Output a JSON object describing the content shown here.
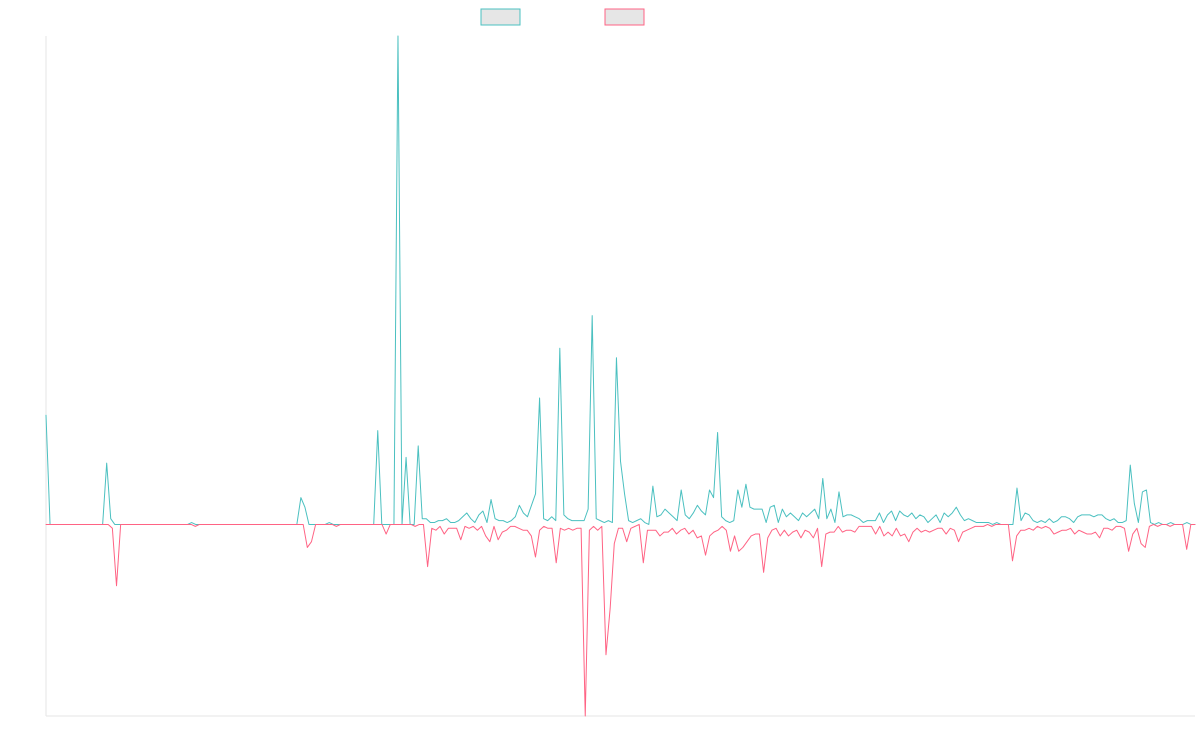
{
  "chart_data": {
    "type": "line",
    "title": "",
    "xlabel": "",
    "ylabel": "",
    "grid": false,
    "legend": "top-center",
    "ylim": [
      -1.0,
      2.55
    ],
    "series": [
      {
        "label": "",
        "stroke": "#4bc0c0",
        "fill": "#e6e6e6",
        "values": [
          0.57,
          0,
          0,
          0,
          0,
          0,
          0,
          0,
          0,
          0,
          0,
          0,
          0,
          0,
          0,
          0.32,
          0.03,
          0,
          0,
          0,
          0,
          0,
          0,
          0,
          0,
          0,
          0,
          0,
          0,
          0,
          0,
          0,
          0,
          0,
          0,
          0,
          0.01,
          0,
          0,
          0,
          0,
          0,
          0,
          0,
          0,
          0,
          0,
          0,
          0,
          0,
          0,
          0,
          0,
          0,
          0,
          0,
          0,
          0,
          0,
          0,
          0,
          0,
          0,
          0.14,
          0.09,
          0,
          0,
          0,
          0,
          0,
          0.01,
          0,
          0,
          0,
          0,
          0,
          0,
          0,
          0,
          0,
          0,
          0,
          0.49,
          0,
          0,
          0,
          0,
          2.55,
          0,
          0.35,
          0,
          0,
          0.41,
          0.03,
          0.03,
          0.01,
          0.01,
          0.02,
          0.02,
          0.03,
          0.01,
          0.01,
          0.02,
          0.04,
          0.06,
          0.03,
          0.01,
          0.05,
          0.07,
          0.01,
          0.13,
          0.03,
          0.02,
          0.02,
          0.01,
          0.02,
          0.04,
          0.1,
          0.06,
          0.04,
          0.1,
          0.16,
          0.66,
          0.03,
          0.02,
          0.04,
          0.02,
          0.92,
          0.05,
          0.03,
          0.02,
          0.02,
          0.02,
          0.02,
          0.08,
          1.09,
          0.03,
          0.02,
          0.01,
          0.02,
          0.01,
          0.87,
          0.33,
          0.16,
          0.02,
          0.01,
          0.02,
          0.03,
          0.01,
          0,
          0.2,
          0.04,
          0.05,
          0.08,
          0.06,
          0.04,
          0.02,
          0.18,
          0.05,
          0.03,
          0.06,
          0.1,
          0.07,
          0.05,
          0.18,
          0.14,
          0.48,
          0.04,
          0.02,
          0.01,
          0.02,
          0.18,
          0.09,
          0.21,
          0.09,
          0.08,
          0.08,
          0.08,
          0.01,
          0.09,
          0.1,
          0.01,
          0.08,
          0.04,
          0.06,
          0.04,
          0.02,
          0.06,
          0.04,
          0.06,
          0.08,
          0.03,
          0.24,
          0.03,
          0.08,
          0.01,
          0.17,
          0.04,
          0.05,
          0.05,
          0.04,
          0.03,
          0.01,
          0.02,
          0.02,
          0.02,
          0.06,
          0.01,
          0.05,
          0.07,
          0.02,
          0.07,
          0.05,
          0.04,
          0.06,
          0.03,
          0.05,
          0.04,
          0.01,
          0.03,
          0.05,
          0.01,
          0.06,
          0.04,
          0.06,
          0.09,
          0.05,
          0.02,
          0.03,
          0.02,
          0.01,
          0.01,
          0.01,
          0.01,
          0,
          0.01,
          0,
          0,
          0,
          0,
          0.19,
          0.02,
          0.06,
          0.05,
          0.02,
          0.01,
          0.02,
          0.01,
          0.03,
          0.01,
          0.02,
          0.04,
          0.04,
          0.03,
          0.01,
          0.04,
          0.05,
          0.05,
          0.05,
          0.04,
          0.05,
          0.05,
          0.03,
          0.02,
          0.03,
          0.01,
          0.01,
          0.02,
          0.31,
          0.11,
          0.01,
          0.17,
          0.18,
          0.01,
          0,
          0.01,
          0,
          0,
          0.01,
          0,
          0,
          0,
          0.01,
          0,
          0
        ]
      },
      {
        "label": "",
        "stroke": "#ff6384",
        "fill": "#e6e6e6",
        "values": [
          0,
          0,
          0,
          0,
          0,
          0,
          0,
          0,
          0,
          0,
          0,
          0,
          0,
          0,
          0,
          0,
          -0.02,
          -0.32,
          0,
          0,
          0,
          0,
          0,
          0,
          0,
          0,
          0,
          0,
          0,
          0,
          0,
          0,
          0,
          0,
          0,
          0,
          -0.01,
          0,
          0,
          0,
          0,
          0,
          0,
          0,
          0,
          0,
          0,
          0,
          0,
          0,
          0,
          0,
          0,
          0,
          0,
          0,
          0,
          0,
          0,
          0,
          0,
          0,
          0,
          -0.12,
          -0.09,
          0,
          0,
          0,
          0,
          0,
          -0.01,
          0,
          0,
          0,
          0,
          0,
          0,
          0,
          0,
          0,
          0,
          0,
          -0.05,
          0,
          0,
          0,
          0,
          0,
          0,
          -0.01,
          0,
          0,
          -0.22,
          -0.02,
          -0.03,
          -0.01,
          -0.05,
          -0.02,
          -0.02,
          -0.02,
          -0.08,
          -0.01,
          -0.02,
          -0.01,
          -0.03,
          -0.01,
          -0.06,
          -0.09,
          -0.01,
          -0.08,
          -0.04,
          -0.03,
          -0.01,
          -0.01,
          -0.02,
          -0.03,
          -0.03,
          -0.06,
          -0.17,
          -0.03,
          -0.01,
          -0.02,
          -0.02,
          -0.2,
          -0.02,
          -0.03,
          -0.02,
          -0.03,
          -0.02,
          -0.02,
          -1.0,
          -0.03,
          -0.01,
          -0.03,
          -0.01,
          -0.68,
          -0.44,
          -0.1,
          -0.02,
          -0.02,
          -0.09,
          -0.02,
          -0.01,
          0,
          -0.2,
          -0.03,
          -0.03,
          -0.03,
          -0.06,
          -0.04,
          -0.04,
          -0.02,
          -0.05,
          -0.03,
          -0.02,
          -0.05,
          -0.03,
          -0.07,
          -0.06,
          -0.16,
          -0.06,
          -0.04,
          -0.03,
          -0.01,
          -0.03,
          -0.14,
          -0.06,
          -0.14,
          -0.12,
          -0.09,
          -0.06,
          -0.05,
          -0.05,
          -0.25,
          -0.07,
          -0.03,
          -0.02,
          -0.06,
          -0.03,
          -0.06,
          -0.04,
          -0.03,
          -0.07,
          -0.03,
          -0.04,
          -0.07,
          -0.02,
          -0.22,
          -0.05,
          -0.04,
          -0.04,
          -0.01,
          -0.04,
          -0.03,
          -0.03,
          -0.04,
          -0.01,
          -0.01,
          -0.01,
          -0.01,
          -0.05,
          -0.01,
          -0.06,
          -0.04,
          -0.06,
          -0.02,
          -0.06,
          -0.05,
          -0.09,
          -0.04,
          -0.02,
          -0.04,
          -0.03,
          -0.04,
          -0.03,
          -0.02,
          -0.02,
          -0.05,
          -0.02,
          -0.03,
          -0.09,
          -0.04,
          -0.03,
          -0.02,
          -0.01,
          -0.01,
          -0.01,
          0,
          -0.01,
          0,
          0,
          0,
          0,
          -0.19,
          -0.06,
          -0.03,
          -0.03,
          -0.02,
          -0.03,
          -0.01,
          -0.02,
          -0.01,
          -0.02,
          -0.05,
          -0.04,
          -0.03,
          -0.03,
          -0.02,
          -0.05,
          -0.03,
          -0.04,
          -0.05,
          -0.05,
          -0.04,
          -0.07,
          -0.02,
          -0.02,
          -0.03,
          -0.01,
          -0.01,
          -0.02,
          -0.14,
          -0.05,
          -0.02,
          -0.1,
          -0.12,
          -0.01,
          0,
          -0.01,
          0,
          0,
          -0.01,
          0,
          0,
          0,
          -0.13,
          0,
          0
        ]
      }
    ]
  }
}
